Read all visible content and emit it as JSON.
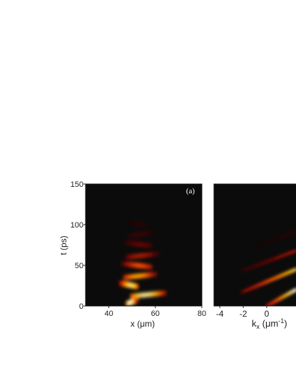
{
  "chart_data": [
    {
      "type": "heatmap",
      "panel_label": "(a)",
      "xlabel": "x (μm)",
      "ylabel": "t (ps)",
      "xlim": [
        30,
        80
      ],
      "ylim": [
        0,
        150
      ],
      "xticks": [
        "40",
        "60",
        "80"
      ],
      "yticks": [
        "0",
        "50",
        "100",
        "150"
      ],
      "colormap": [
        "#0b0b0b",
        "#5a0000",
        "#b81000",
        "#ff4a00",
        "#ffb400",
        "#fff7c0"
      ],
      "features": [
        {
          "t": 5,
          "x_from": 48,
          "x_to": 52,
          "intensity": 1.0
        },
        {
          "t": 14,
          "x_from": 50,
          "x_to": 64,
          "intensity": 0.95
        },
        {
          "t": 26,
          "x_from": 52,
          "x_to": 45,
          "intensity": 0.9
        },
        {
          "t": 37,
          "x_from": 47,
          "x_to": 60,
          "intensity": 0.75
        },
        {
          "t": 50,
          "x_from": 58,
          "x_to": 46,
          "intensity": 0.6
        },
        {
          "t": 62,
          "x_from": 48,
          "x_to": 61,
          "intensity": 0.45
        },
        {
          "t": 76,
          "x_from": 58,
          "x_to": 47,
          "intensity": 0.3
        },
        {
          "t": 88,
          "x_from": 49,
          "x_to": 59,
          "intensity": 0.18
        },
        {
          "t": 101,
          "x_from": 56,
          "x_to": 49,
          "intensity": 0.1
        }
      ]
    },
    {
      "type": "heatmap",
      "xlabel": "k",
      "xlabel_sub": "x",
      "xlabel_unit": " (μm",
      "xlabel_unit_sup": "-1",
      "xlabel_close": ")",
      "xlim": [
        -4.5,
        2.5
      ],
      "ylim": [
        0,
        150
      ],
      "xticks": [
        "-4",
        "-2",
        "0"
      ],
      "features": [
        {
          "k_from": 0.0,
          "t_from": 0,
          "k_to": 2.5,
          "t_to": 20,
          "intensity": 1.0
        },
        {
          "k_from": -2.1,
          "t_from": 17,
          "k_to": 2.5,
          "t_to": 45,
          "intensity": 0.85
        },
        {
          "k_from": -2.1,
          "t_from": 43,
          "k_to": 2.5,
          "t_to": 68,
          "intensity": 0.4
        },
        {
          "k_from": -1.0,
          "t_from": 72,
          "k_to": 2.5,
          "t_to": 92,
          "intensity": 0.12
        }
      ]
    }
  ]
}
